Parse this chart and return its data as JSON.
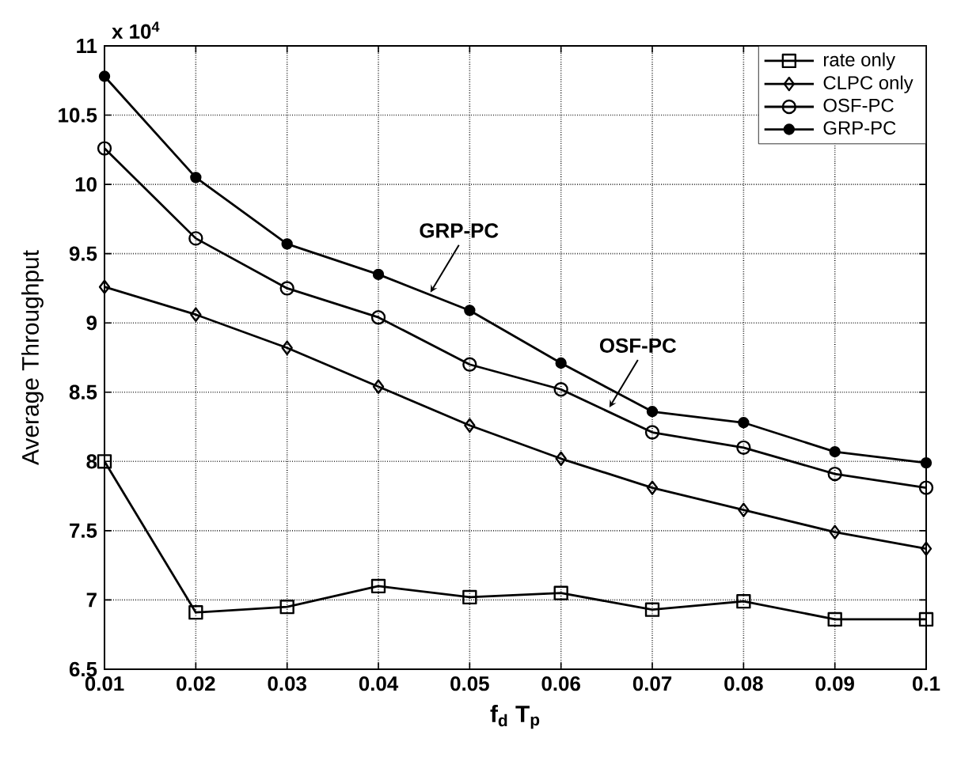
{
  "chart_data": {
    "type": "line",
    "xlabel": "f$_{d}$ T$_{p}$",
    "ylabel": "Average Throughput",
    "x": [
      0.01,
      0.02,
      0.03,
      0.04,
      0.05,
      0.06,
      0.07,
      0.08,
      0.09,
      0.1
    ],
    "series": [
      {
        "name": "rate only",
        "color": "#000000",
        "marker": "square",
        "values": [
          8.0,
          6.91,
          6.95,
          7.1,
          7.02,
          7.05,
          6.93,
          6.99,
          6.86,
          6.86
        ]
      },
      {
        "name": "CLPC only",
        "color": "#000000",
        "marker": "diamond",
        "values": [
          9.26,
          9.06,
          8.82,
          8.54,
          8.26,
          8.02,
          7.81,
          7.65,
          7.49,
          7.37
        ]
      },
      {
        "name": "OSF-PC",
        "color": "#000000",
        "marker": "circle",
        "values": [
          10.26,
          9.61,
          9.25,
          9.04,
          8.7,
          8.52,
          8.21,
          8.1,
          7.91,
          7.81
        ]
      },
      {
        "name": "GRP-PC",
        "color": "#000000",
        "marker": "circle",
        "values": [
          10.78,
          10.05,
          9.57,
          9.35,
          9.09,
          8.71,
          8.36,
          8.28,
          8.07,
          7.99
        ]
      }
    ],
    "xlim": [
      0.01,
      0.1
    ],
    "ylim": [
      6.5,
      11
    ],
    "xticks": [
      0.01,
      0.02,
      0.03,
      0.04,
      0.05,
      0.06,
      0.07,
      0.08,
      0.09,
      0.1
    ],
    "yticks": [
      6.5,
      7,
      7.5,
      8,
      8.5,
      9,
      9.5,
      10,
      10.5,
      11
    ],
    "annotations": [
      "x 10$^{4}$",
      {
        "text": "GRP-PC",
        "x": 0.0457,
        "y": 9.22
      },
      {
        "text": "OSF-PC",
        "x": 0.0653,
        "y": 8.39
      }
    ],
    "grid": true,
    "legend": "top right",
    "line_style": "solid"
  }
}
